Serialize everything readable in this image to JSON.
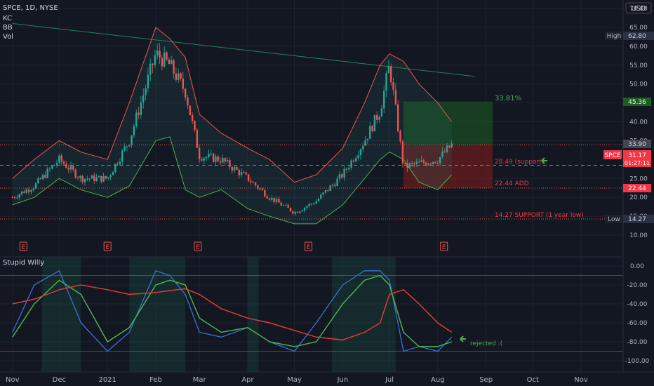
{
  "header": {
    "symbol_line": "SPCE, 1D, NYSE",
    "indicators": [
      "KC",
      "BB",
      "Vol"
    ],
    "currency": "USD"
  },
  "price_axis": {
    "ticks": [
      "70.00",
      "65.00",
      "60.00",
      "55.00",
      "50.00",
      "45.00",
      "40.00",
      "35.00",
      "25.00",
      "20.00",
      "15.00",
      "10.00"
    ],
    "high_label": "High",
    "high_value": "62.80",
    "low_label": "Low",
    "low_value": "14.27",
    "target_value": "45.36",
    "last_value": "33.90",
    "symbol_tag": "SPCE",
    "symbol_price": "31.17",
    "countdown": "01:27:11",
    "stop_value": "22.44"
  },
  "annotations": {
    "percent": "33.81%",
    "support": "28.49 (support)",
    "add": "22.44 ADD",
    "year_low": "14.27 SUPPORT (1 year low)",
    "rejected": "rejected :("
  },
  "earnings_marker": "E",
  "oscillator": {
    "title": "Stupid Willy",
    "ticks": [
      "0.00",
      "-20.00",
      "-40.00",
      "-60.00",
      "-80.00",
      "-100.00"
    ]
  },
  "time_axis": [
    "Nov",
    "Dec",
    "2021",
    "Feb",
    "Mar",
    "Apr",
    "May",
    "Jun",
    "Jul",
    "Aug",
    "Sep",
    "Oct",
    "Nov"
  ],
  "colors": {
    "background": "#131722",
    "candle_up": "#26a69a",
    "candle_down": "#ef5350",
    "upper_band": "#ef5350",
    "lower_band": "#4caf50",
    "target": "#26a69a",
    "stop": "#f23645",
    "trendline": "#2e7d5b",
    "willy": "#3f6fd8",
    "fast_ma": "#4caf50",
    "slow_ma": "#e53935"
  },
  "chart_data": {
    "type": "candlestick",
    "title": "SPCE, 1D, NYSE",
    "ylim": [
      7,
      71
    ],
    "osc_ylim": [
      -105,
      5
    ],
    "price_series": {
      "name": "SPCE close",
      "x": [
        "2020-11-01",
        "2020-11-15",
        "2020-12-01",
        "2020-12-15",
        "2021-01-01",
        "2021-01-15",
        "2021-02-01",
        "2021-02-10",
        "2021-02-20",
        "2021-03-01",
        "2021-03-15",
        "2021-04-01",
        "2021-04-15",
        "2021-05-01",
        "2021-05-15",
        "2021-06-01",
        "2021-06-15",
        "2021-06-25",
        "2021-07-01",
        "2021-07-10",
        "2021-07-20",
        "2021-08-01",
        "2021-08-10"
      ],
      "values": [
        20,
        23,
        30,
        25,
        25,
        35,
        58,
        55,
        48,
        31,
        30,
        25,
        20,
        16,
        19,
        26,
        35,
        43,
        55,
        28,
        29,
        30,
        33.9
      ]
    },
    "upper_band": [
      25,
      30,
      35,
      32,
      30,
      45,
      65,
      62,
      57,
      42,
      37,
      33,
      30,
      24,
      26,
      33,
      45,
      55,
      58,
      56,
      50,
      45,
      40
    ],
    "lower_band": [
      18,
      20,
      25,
      22,
      20,
      23,
      35,
      36,
      22,
      20,
      22,
      17,
      15,
      13,
      13,
      18,
      25,
      30,
      32,
      30,
      24,
      22,
      26
    ],
    "horizontal_levels": {
      "target": 45.36,
      "entry": 33.9,
      "support": 28.49,
      "stop": 22.44,
      "year_low": 14.27
    },
    "trendline": {
      "x": [
        "2020-11-01",
        "2021-08-25"
      ],
      "y": [
        66,
        52
      ]
    },
    "earnings_dates": [
      "2020-11-08",
      "2021-01-01",
      "2021-02-28",
      "2021-05-10",
      "2021-08-05"
    ],
    "oscillator_willy": [
      -70,
      -20,
      -5,
      -60,
      -90,
      -70,
      -5,
      -10,
      -30,
      -70,
      -75,
      -65,
      -80,
      -90,
      -60,
      -20,
      -5,
      -5,
      -15,
      -90,
      -85,
      -90,
      -75
    ],
    "oscillator_fast": [
      -75,
      -40,
      -15,
      -30,
      -80,
      -65,
      -20,
      -15,
      -20,
      -55,
      -70,
      -65,
      -80,
      -85,
      -80,
      -40,
      -15,
      -10,
      -20,
      -70,
      -85,
      -85,
      -80
    ],
    "oscillator_slow": [
      -40,
      -35,
      -25,
      -20,
      -25,
      -30,
      -28,
      -26,
      -24,
      -30,
      -45,
      -55,
      -60,
      -68,
      -75,
      -78,
      -70,
      -60,
      -30,
      -25,
      -40,
      -60,
      -70
    ]
  }
}
